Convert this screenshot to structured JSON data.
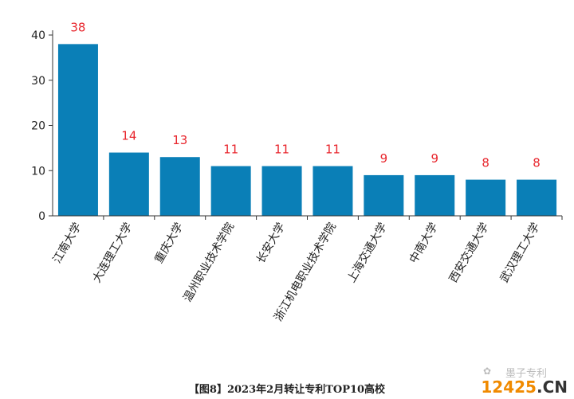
{
  "chart_data": {
    "type": "bar",
    "categories": [
      "江南大学",
      "大连理工大学",
      "重庆大学",
      "温州职业技术学院",
      "长安大学",
      "浙江机电职业技术学院",
      "上海交通大学",
      "中南大学",
      "西安交通大学",
      "武汉理工大学"
    ],
    "values": [
      38,
      14,
      13,
      11,
      11,
      11,
      9,
      9,
      8,
      8
    ],
    "ylim": [
      0,
      40
    ],
    "yticks": [
      0,
      10,
      20,
      30,
      40
    ],
    "grid": false,
    "bar_color": "#0a7fb7",
    "label_color": "#e8262d"
  },
  "caption": "【图8】2023年2月转让专利TOP10高校",
  "watermark": {
    "icon": "wechat-icon",
    "account": "墨子专利",
    "site_num": "12425",
    "site_dom": ".CN"
  }
}
